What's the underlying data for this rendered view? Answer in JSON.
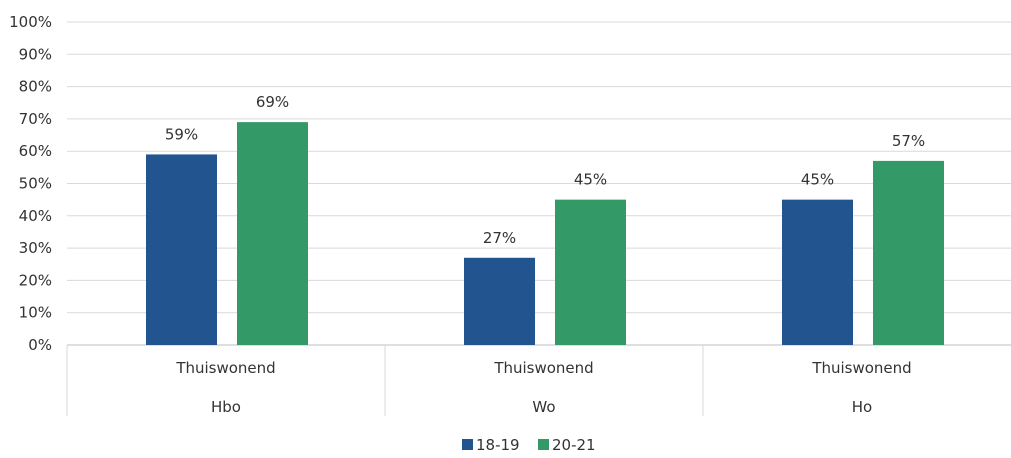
{
  "chart_data": {
    "type": "bar",
    "title": "",
    "xlabel": "",
    "ylabel": "",
    "ylim": [
      0,
      100
    ],
    "y_ticks": [
      0,
      10,
      20,
      30,
      40,
      50,
      60,
      70,
      80,
      90,
      100
    ],
    "y_tick_format": "percent",
    "grid": true,
    "legend_position": "bottom",
    "categories": [
      "Thuiswonend",
      "Thuiswonend",
      "Thuiswonend"
    ],
    "groups": [
      "Hbo",
      "Wo",
      "Ho"
    ],
    "series": [
      {
        "name": "18-19",
        "color": "#22548f",
        "values": [
          59,
          27,
          45
        ],
        "labels": [
          "59%",
          "27%",
          "45%"
        ]
      },
      {
        "name": "20-21",
        "color": "#339966",
        "values": [
          69,
          45,
          57
        ],
        "labels": [
          "69%",
          "45%",
          "57%"
        ]
      }
    ]
  }
}
